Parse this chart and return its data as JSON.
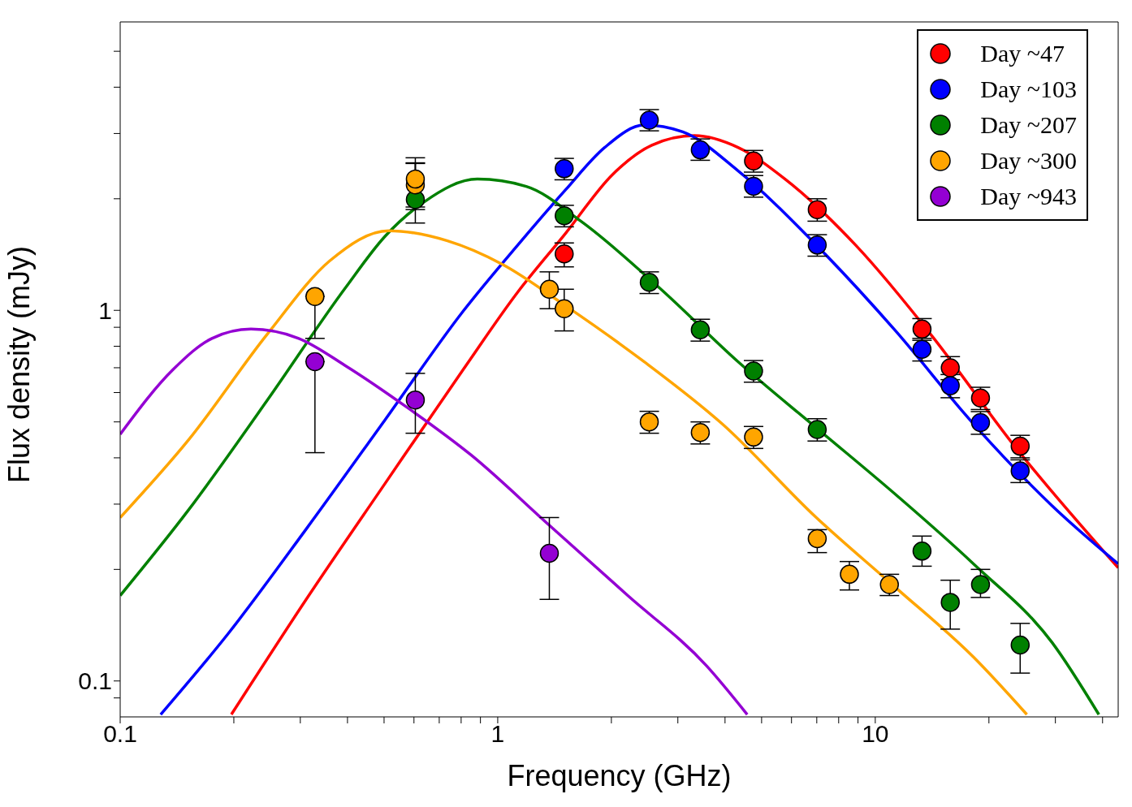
{
  "chart_data": {
    "type": "scatter",
    "xlabel": "Frequency (GHz)",
    "ylabel": "Flux density (mJy)",
    "log": "xy",
    "xlim": [
      0.1,
      44
    ],
    "ylim": [
      0.08,
      6
    ],
    "xticks": [
      0.1,
      {
        "value": 0.2,
        "label": null
      },
      {
        "value": 0.3,
        "label": null
      },
      {
        "value": 0.4,
        "label": null
      },
      {
        "value": 0.5,
        "label": null
      },
      {
        "value": 0.6,
        "label": null
      },
      {
        "value": 0.7,
        "label": null
      },
      {
        "value": 0.8,
        "label": null
      },
      {
        "value": 0.9,
        "label": null
      },
      1,
      {
        "value": 2,
        "label": null
      },
      {
        "value": 3,
        "label": null
      },
      {
        "value": 4,
        "label": null
      },
      {
        "value": 5,
        "label": null
      },
      {
        "value": 6,
        "label": null
      },
      {
        "value": 7,
        "label": null
      },
      {
        "value": 8,
        "label": null
      },
      {
        "value": 9,
        "label": null
      },
      10,
      {
        "value": 20,
        "label": null
      },
      {
        "value": 30,
        "label": null
      },
      {
        "value": 40,
        "label": null
      }
    ],
    "yticks": [
      {
        "value": 0.09,
        "label": null
      },
      0.1,
      {
        "value": 0.2,
        "label": null
      },
      {
        "value": 0.3,
        "label": null
      },
      {
        "value": 0.4,
        "label": null
      },
      {
        "value": 0.5,
        "label": null
      },
      {
        "value": 0.6,
        "label": null
      },
      {
        "value": 0.7,
        "label": null
      },
      {
        "value": 0.8,
        "label": null
      },
      {
        "value": 0.9,
        "label": null
      },
      1,
      {
        "value": 2,
        "label": null
      },
      {
        "value": 3,
        "label": null
      },
      {
        "value": 4,
        "label": null
      },
      {
        "value": 5,
        "label": null
      }
    ],
    "legend": "top right",
    "marker": "circle",
    "line_style": "solid",
    "series": [
      {
        "name": "Day ~47",
        "color": "#ff0000",
        "x": [
          1.5,
          4.76,
          7.02,
          13.3,
          15.8,
          19.0,
          24.2
        ],
        "values": [
          1.42,
          2.53,
          1.87,
          0.89,
          0.7,
          0.58,
          0.43
        ],
        "errors": [
          [
            1.31,
            1.52
          ],
          0.17,
          0.13,
          0.06,
          0.05,
          0.04,
          0.03
        ]
      },
      {
        "name": "Day ~103",
        "color": "#0000ff",
        "x": [
          1.5,
          2.52,
          3.44,
          4.76,
          7.02,
          13.3,
          15.8,
          19.0,
          24.2
        ],
        "values": [
          2.41,
          3.26,
          2.71,
          2.16,
          1.5,
          0.785,
          0.626,
          0.498,
          0.369
        ],
        "errors": [
          0.16,
          [
            3.05,
            3.48
          ],
          [
            2.54,
            2.9
          ],
          [
            2.02,
            2.31
          ],
          0.1,
          0.055,
          0.045,
          0.035,
          0.026
        ]
      },
      {
        "name": "Day ~207",
        "color": "#008000",
        "x": [
          0.605,
          1.5,
          2.52,
          3.44,
          4.76,
          7.02,
          13.3,
          15.8,
          19.0,
          24.2
        ],
        "values": [
          1.99,
          1.8,
          1.19,
          0.886,
          0.686,
          0.477,
          0.224,
          0.163,
          0.182,
          0.125
        ],
        "errors": [
          [
            1.72,
            2.49
          ],
          0.12,
          0.08,
          0.06,
          0.046,
          0.033,
          [
            0.204,
            0.246
          ],
          [
            0.138,
            0.187
          ],
          [
            0.168,
            0.2
          ],
          [
            0.105,
            0.143
          ]
        ]
      },
      {
        "name": "Day ~300",
        "color": "#ffa500",
        "x": [
          0.328,
          0.605,
          0.605,
          1.37,
          1.5,
          2.52,
          3.44,
          4.76,
          7.02,
          8.54,
          10.9
        ],
        "values": [
          1.09,
          2.18,
          2.26,
          1.14,
          1.01,
          0.5,
          0.468,
          0.455,
          0.242,
          0.194,
          0.182
        ],
        "errors": [
          [
            0.84,
            1.09
          ],
          [
            1.87,
            2.5
          ],
          [
            1.9,
            2.58
          ],
          [
            1.01,
            1.27
          ],
          [
            0.88,
            1.14
          ],
          0.034,
          0.032,
          0.031,
          [
            0.222,
            0.256
          ],
          [
            0.176,
            0.21
          ],
          [
            0.17,
            0.194
          ]
        ]
      },
      {
        "name": "Day ~943",
        "color": "#9400d3",
        "x": [
          0.328,
          0.605,
          1.37
        ],
        "values": [
          0.727,
          0.573,
          0.221
        ],
        "errors": [
          [
            0.413,
            0.727
          ],
          [
            0.466,
            0.676
          ],
          [
            0.166,
            0.276
          ]
        ]
      },
      {
        "type": "line",
        "marker": "none",
        "color": "#ff0000",
        "x": [
          0.197,
          0.311,
          0.502,
          0.81,
          1.13,
          1.51,
          2.01,
          2.56,
          3.32,
          4.33,
          5.77,
          8.87,
          14.3,
          23.1,
          44
        ],
        "values": [
          0.0812,
          0.166,
          0.34,
          0.692,
          1.12,
          1.61,
          2.32,
          2.79,
          2.96,
          2.75,
          2.26,
          1.5,
          0.84,
          0.437,
          0.202
        ]
      },
      {
        "type": "line",
        "marker": "none",
        "color": "#0000ff",
        "x": [
          0.128,
          0.193,
          0.311,
          0.502,
          0.81,
          1.13,
          1.51,
          1.92,
          2.44,
          3.09,
          4.33,
          6.98,
          11.3,
          18.2,
          29.4,
          44
        ],
        "values": [
          0.0812,
          0.134,
          0.257,
          0.505,
          0.995,
          1.5,
          2.11,
          2.75,
          3.16,
          3.03,
          2.38,
          1.5,
          0.882,
          0.494,
          0.297,
          0.207
        ]
      },
      {
        "type": "line",
        "marker": "none",
        "color": "#008000",
        "x": [
          0.1,
          0.152,
          0.245,
          0.395,
          0.502,
          0.638,
          0.883,
          1.19,
          1.66,
          2.68,
          4.33,
          6.98,
          11.3,
          18.2,
          29.4,
          39.1
        ],
        "values": [
          0.17,
          0.29,
          0.571,
          1.15,
          1.58,
          1.96,
          2.26,
          2.16,
          1.74,
          1.15,
          0.727,
          0.482,
          0.319,
          0.207,
          0.127,
          0.0812
        ]
      },
      {
        "type": "line",
        "marker": "none",
        "color": "#ffa500",
        "x": [
          0.1,
          0.152,
          0.245,
          0.359,
          0.514,
          0.736,
          1.03,
          1.51,
          2.44,
          3.93,
          6.98,
          11.3,
          18.2,
          25.2
        ],
        "values": [
          0.276,
          0.448,
          0.861,
          1.36,
          1.64,
          1.54,
          1.33,
          1.03,
          0.727,
          0.494,
          0.276,
          0.179,
          0.116,
          0.0812
        ]
      },
      {
        "type": "line",
        "marker": "none",
        "color": "#9400d3",
        "x": [
          0.1,
          0.138,
          0.175,
          0.222,
          0.297,
          0.395,
          0.58,
          0.85,
          1.37,
          2.21,
          3.57,
          4.58
        ],
        "values": [
          0.463,
          0.692,
          0.84,
          0.89,
          0.84,
          0.709,
          0.544,
          0.407,
          0.263,
          0.17,
          0.11,
          0.0812
        ]
      }
    ]
  }
}
